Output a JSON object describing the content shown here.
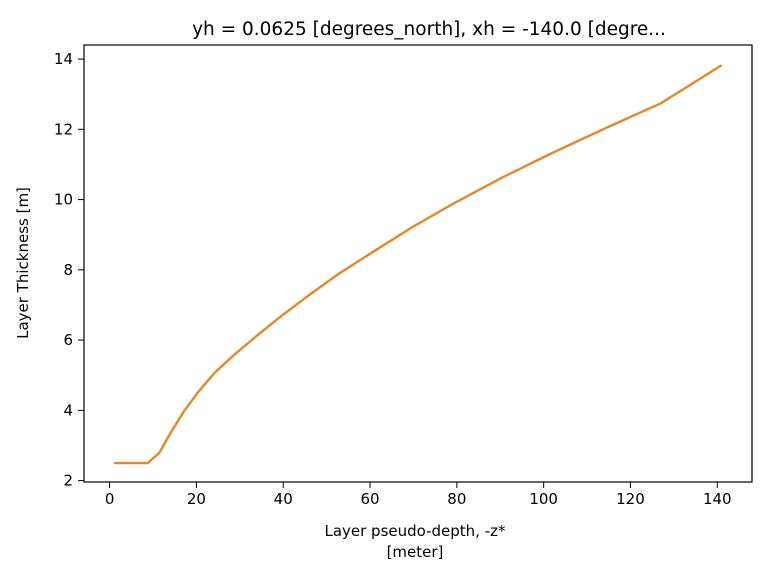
{
  "chart_data": {
    "type": "line",
    "title": "yh = 0.0625 [degrees_north], xh = -140.0 [degre...",
    "xlabel_line1": "Layer pseudo-depth, -z*",
    "xlabel_line2": "[meter]",
    "ylabel": "Layer Thickness [m]",
    "xlim": [
      -5.9,
      148.0
    ],
    "ylim": [
      1.96,
      14.4
    ],
    "xticks": [
      0,
      20,
      40,
      60,
      80,
      100,
      120,
      140
    ],
    "yticks": [
      2,
      4,
      6,
      8,
      10,
      12,
      14
    ],
    "grid": false,
    "series": [
      {
        "color": "#e8872a",
        "x": [
          1.25,
          3.75,
          6.25,
          8.75,
          11.4,
          14.0,
          17.0,
          20.4,
          24.2,
          28.6,
          33.4,
          39.1,
          45.5,
          52.7,
          60.8,
          69.8,
          79.7,
          90.5,
          102.2,
          114.4,
          127.0,
          140.8
        ],
        "y": [
          2.5,
          2.5,
          2.5,
          2.5,
          2.78,
          3.35,
          3.95,
          4.52,
          5.07,
          5.57,
          6.07,
          6.64,
          7.24,
          7.88,
          8.52,
          9.22,
          9.92,
          10.63,
          11.34,
          12.04,
          12.74,
          13.81
        ]
      }
    ]
  }
}
